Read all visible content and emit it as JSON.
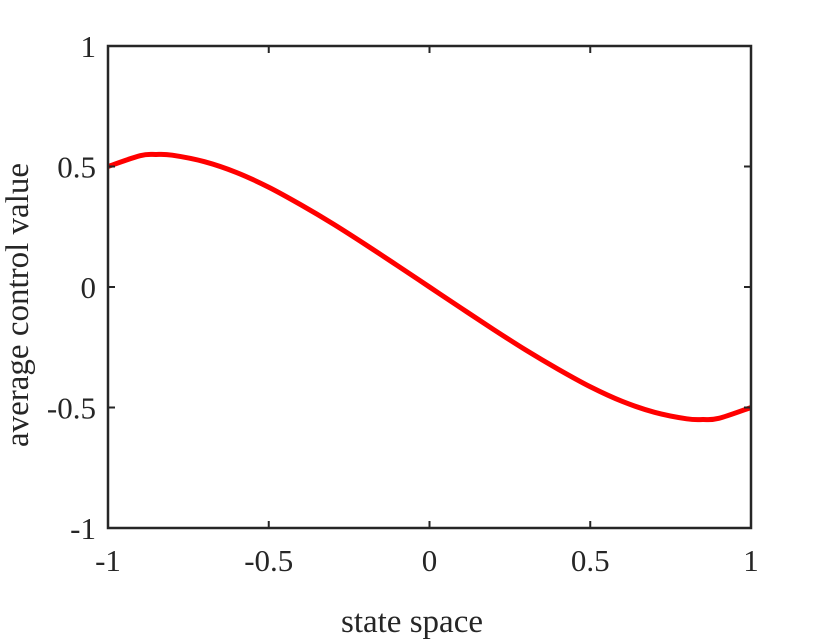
{
  "chart_data": {
    "type": "line",
    "title": "",
    "xlabel": "state space",
    "ylabel": "average control value",
    "xlim": [
      -1,
      1
    ],
    "ylim": [
      -1,
      1
    ],
    "grid": false,
    "x_ticks": [
      -1,
      -0.5,
      0,
      0.5,
      1
    ],
    "x_tick_labels": [
      "-1",
      "-0.5",
      "0",
      "0.5",
      "1"
    ],
    "y_ticks": [
      -1,
      -0.5,
      0,
      0.5,
      1
    ],
    "y_tick_labels": [
      "-1",
      "-0.5",
      "0",
      "0.5",
      "1"
    ],
    "series": [
      {
        "color": "#ff0000",
        "x": [
          -1,
          -0.9,
          -0.85,
          -0.8,
          -0.7,
          -0.6,
          -0.5,
          -0.4,
          -0.3,
          -0.2,
          -0.1,
          0,
          0.1,
          0.2,
          0.3,
          0.4,
          0.5,
          0.6,
          0.7,
          0.8,
          0.85,
          0.9,
          1
        ],
        "y": [
          0.5,
          0.545,
          0.55,
          0.547,
          0.52,
          0.475,
          0.414,
          0.341,
          0.262,
          0.177,
          0.089,
          0,
          -0.089,
          -0.177,
          -0.262,
          -0.341,
          -0.414,
          -0.475,
          -0.52,
          -0.547,
          -0.55,
          -0.545,
          -0.5
        ]
      }
    ]
  }
}
